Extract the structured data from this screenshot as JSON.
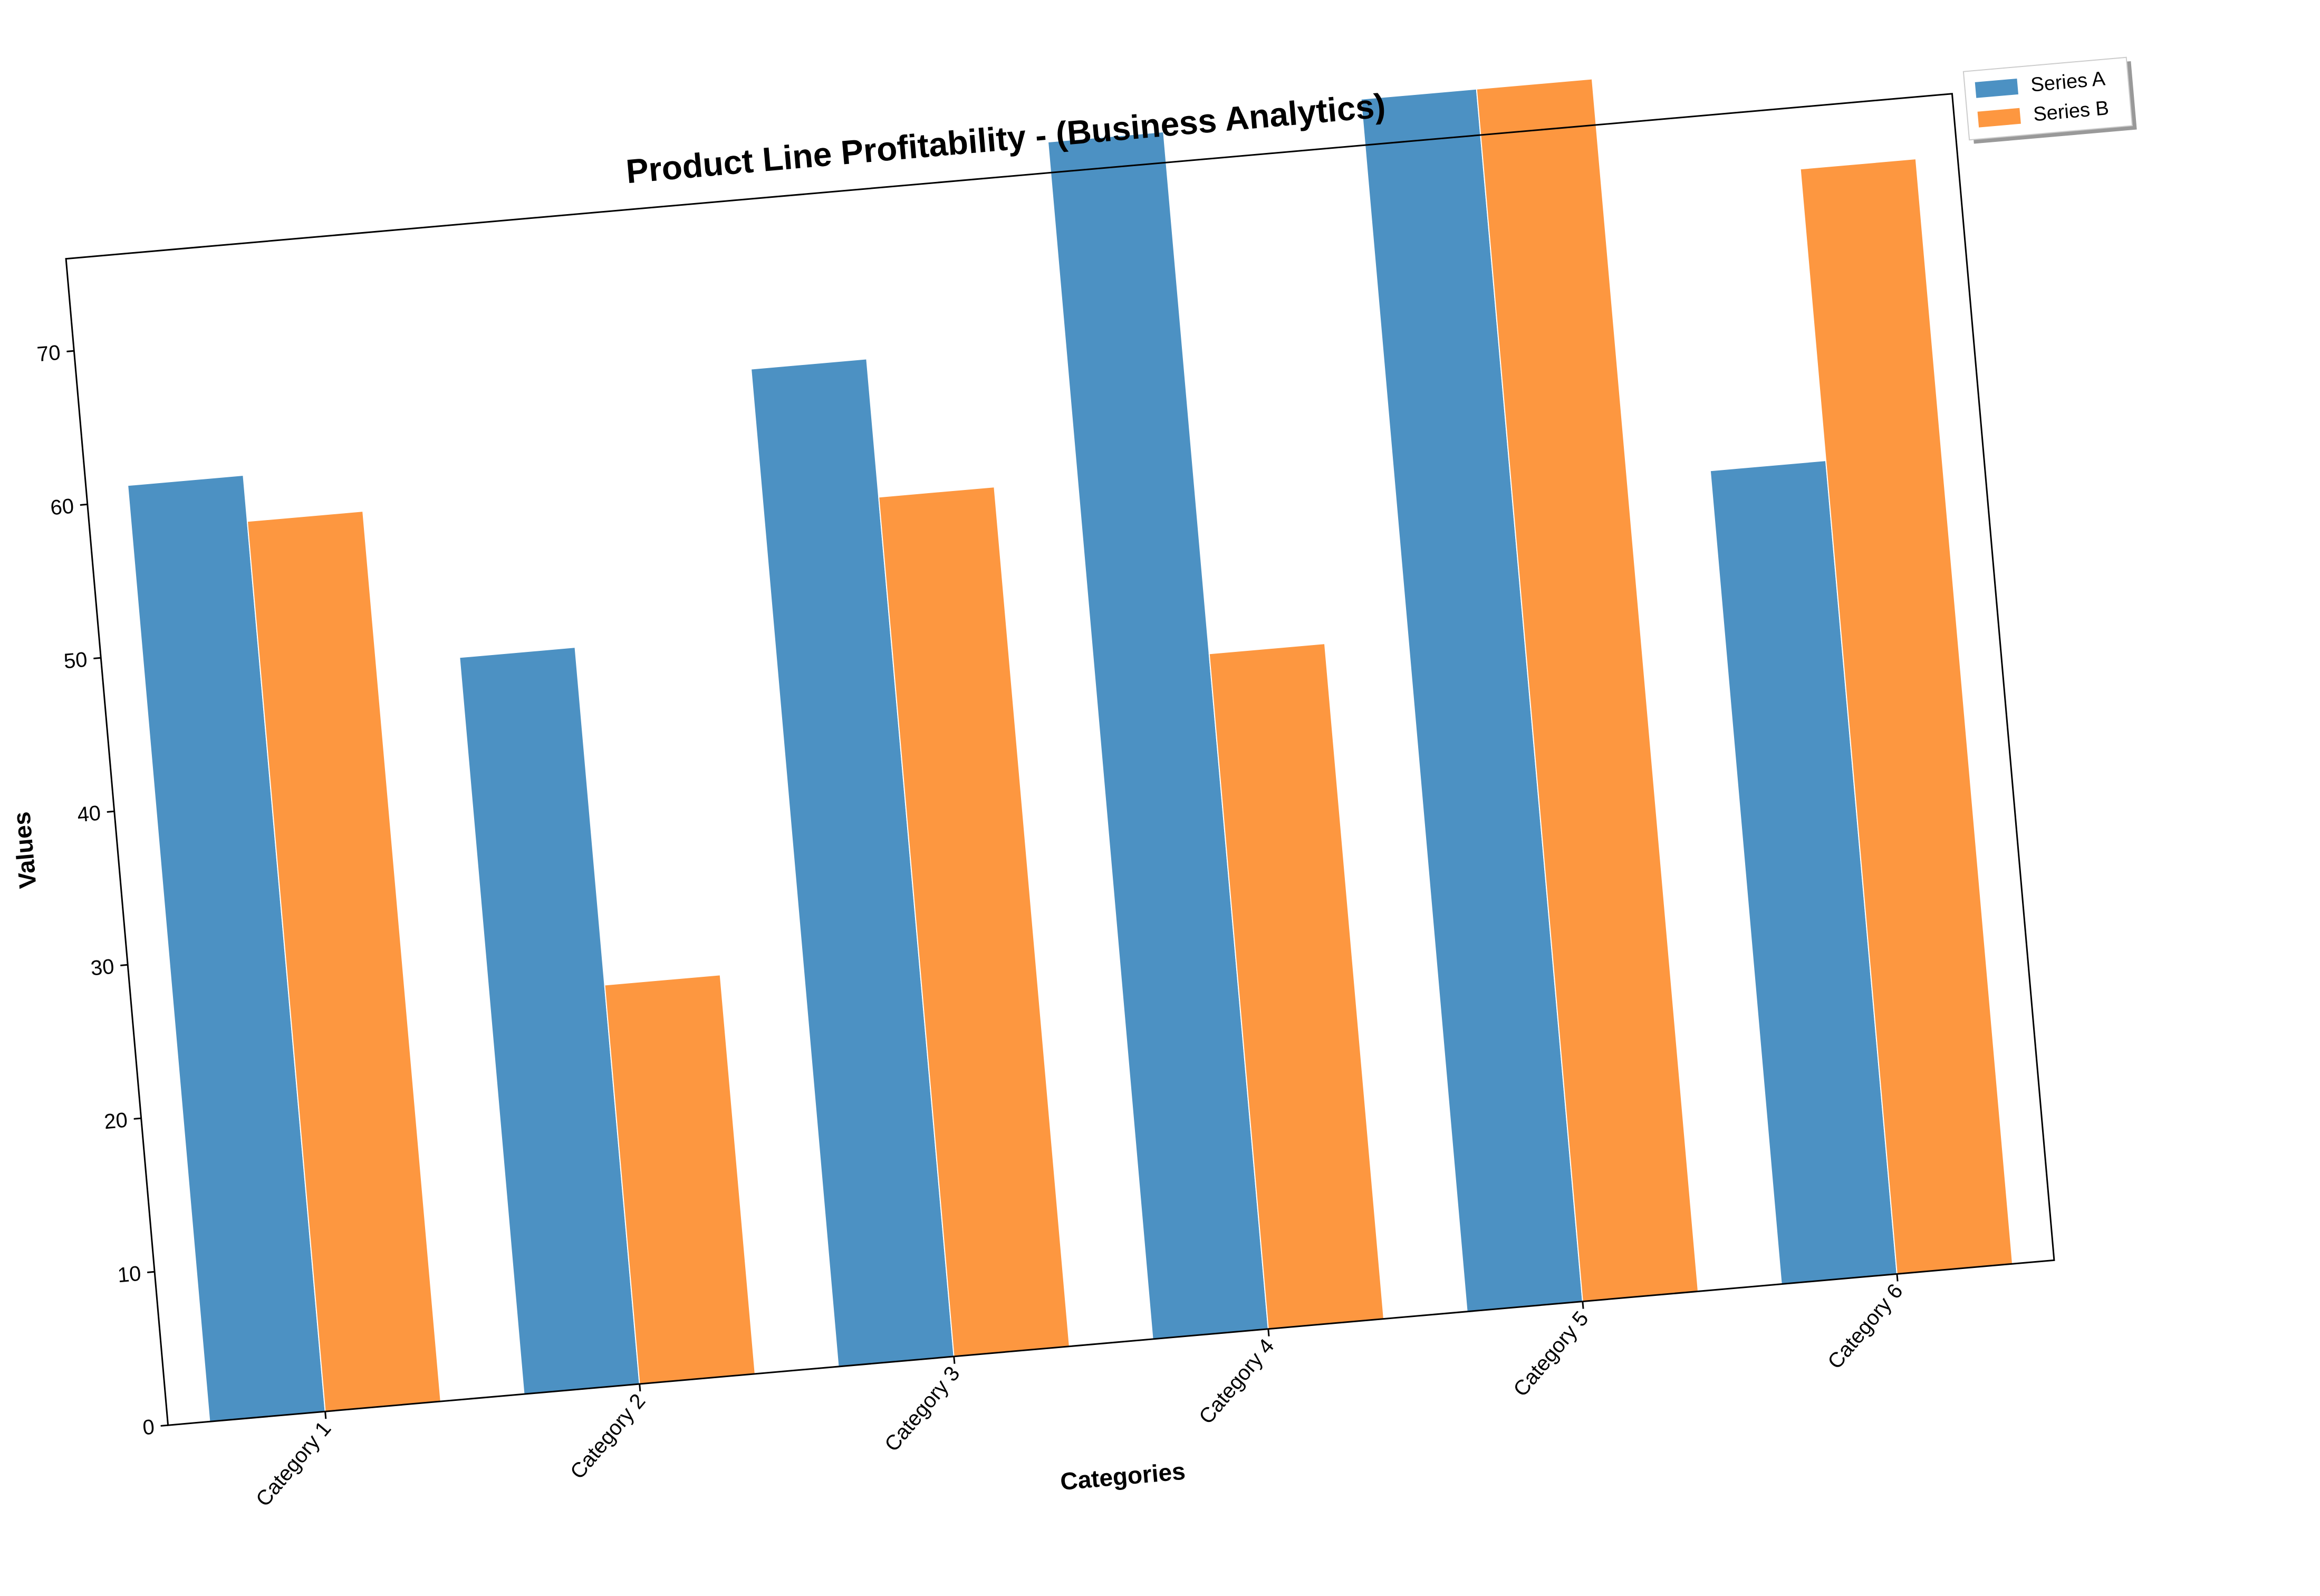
{
  "chart_data": {
    "type": "bar",
    "title": "Product Line Profitability - (Business Analytics)",
    "xlabel": "Categories",
    "ylabel": "Values",
    "categories": [
      "Category 1",
      "Category 2",
      "Category 3",
      "Category 4",
      "Category 5",
      "Category 6"
    ],
    "series": [
      {
        "name": "Series A",
        "color": "#4c91c3",
        "values": [
          61,
          48,
          65,
          78,
          79,
          53
        ]
      },
      {
        "name": "Series B",
        "color": "#fd9740",
        "values": [
          58,
          26,
          56,
          44,
          79,
          72
        ]
      }
    ],
    "ylim": [
      0,
      76
    ],
    "yticks": [
      0,
      10,
      20,
      30,
      40,
      50,
      60,
      70
    ],
    "grid": false,
    "legend": "top-right, outside plot",
    "rotation_deg": -5
  }
}
